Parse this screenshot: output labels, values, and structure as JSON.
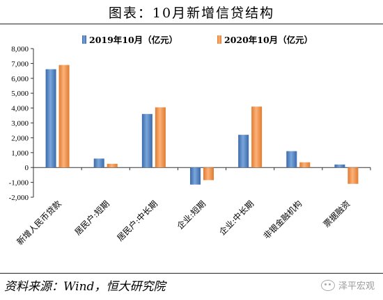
{
  "title": "图表：10月新增信贷结构",
  "source": "资料来源：Wind，恒大研究院",
  "watermark": {
    "text": "泽平宏观",
    "icon": "wechat-icon"
  },
  "chart_data": {
    "type": "bar",
    "categories": [
      "新增人民币贷款",
      "居民户:短期",
      "居民户:中长期",
      "企业:短期",
      "企业:中长期",
      "非银金融机构",
      "票据融资"
    ],
    "series": [
      {
        "name": "2019年10月（亿元）",
        "color": "#4f81bd",
        "values": [
          6613,
          600,
          3600,
          -1150,
          2200,
          1100,
          200
        ]
      },
      {
        "name": "2020年10月（亿元）",
        "color": "#f79646",
        "values": [
          6898,
          250,
          4050,
          -850,
          4100,
          350,
          -1100
        ]
      }
    ],
    "yticks": [
      "8,000",
      "7,000",
      "6,000",
      "5,000",
      "4,000",
      "3,000",
      "2,000",
      "1,000",
      "0",
      "-1,000",
      "-2,000"
    ],
    "ylim": [
      -2000,
      8000
    ],
    "legend": "top",
    "grid": false
  }
}
